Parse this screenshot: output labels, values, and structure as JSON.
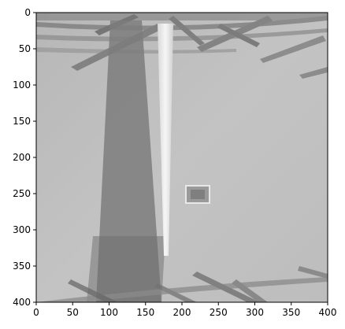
{
  "figure": {
    "description_free": true,
    "x_axis": {
      "range": [
        0,
        400
      ],
      "ticks": [
        "0",
        "50",
        "100",
        "150",
        "200",
        "250",
        "300",
        "350",
        "400"
      ]
    },
    "y_axis": {
      "range": [
        0,
        400
      ],
      "inverted": true,
      "ticks": [
        "0",
        "50",
        "100",
        "150",
        "200",
        "250",
        "300",
        "350",
        "400"
      ]
    },
    "colors": {
      "ground": "#bfbfbf",
      "shadow_dark": "#6a6a6a",
      "shadow_mid": "#8a8a8a",
      "bright_beam": "#ececec",
      "structure": "#5a5a5a"
    }
  }
}
